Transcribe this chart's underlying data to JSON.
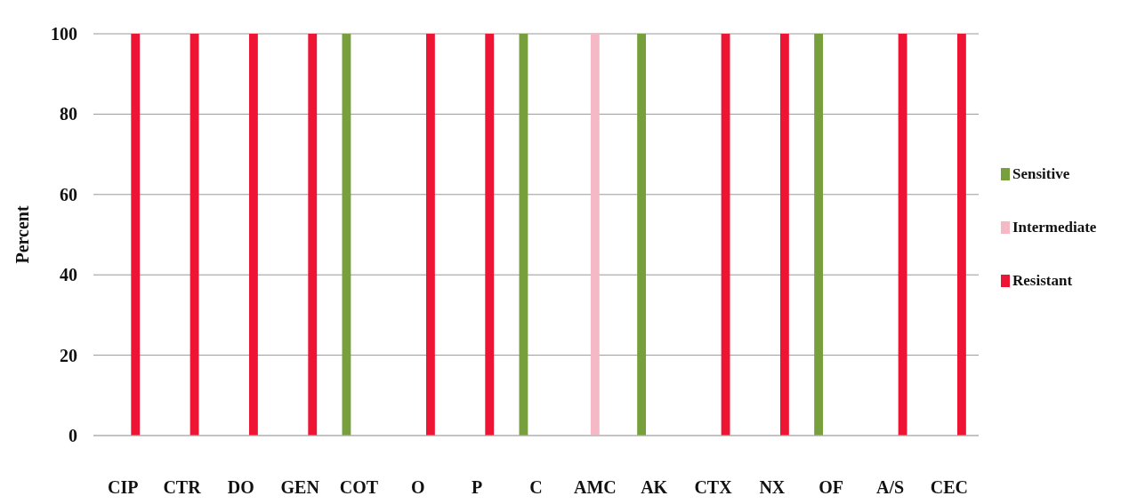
{
  "chart_data": {
    "type": "bar",
    "ylabel": "Percent",
    "categories": [
      "CIP",
      "CTR",
      "DO",
      "GEN",
      "COT",
      "O",
      "P",
      "C",
      "AMC",
      "AK",
      "CTX",
      "NX",
      "OF",
      "A/S",
      "CEC"
    ],
    "series": [
      {
        "name": "Sensitive",
        "color": "#77a03c",
        "values": [
          0,
          0,
          0,
          0,
          100,
          0,
          0,
          100,
          0,
          100,
          0,
          0,
          100,
          0,
          0
        ]
      },
      {
        "name": "Intermediate",
        "color": "#f4b9c4",
        "values": [
          0,
          0,
          0,
          0,
          0,
          0,
          0,
          0,
          100,
          0,
          0,
          0,
          0,
          0,
          0
        ]
      },
      {
        "name": "Resistant",
        "color": "#ee1433",
        "values": [
          100,
          100,
          100,
          100,
          0,
          100,
          100,
          0,
          0,
          0,
          100,
          100,
          0,
          100,
          100
        ]
      }
    ],
    "ylim": [
      0,
      100
    ],
    "yticks": [
      0,
      20,
      40,
      60,
      80,
      100
    ],
    "grid": "y",
    "legend": "right"
  }
}
